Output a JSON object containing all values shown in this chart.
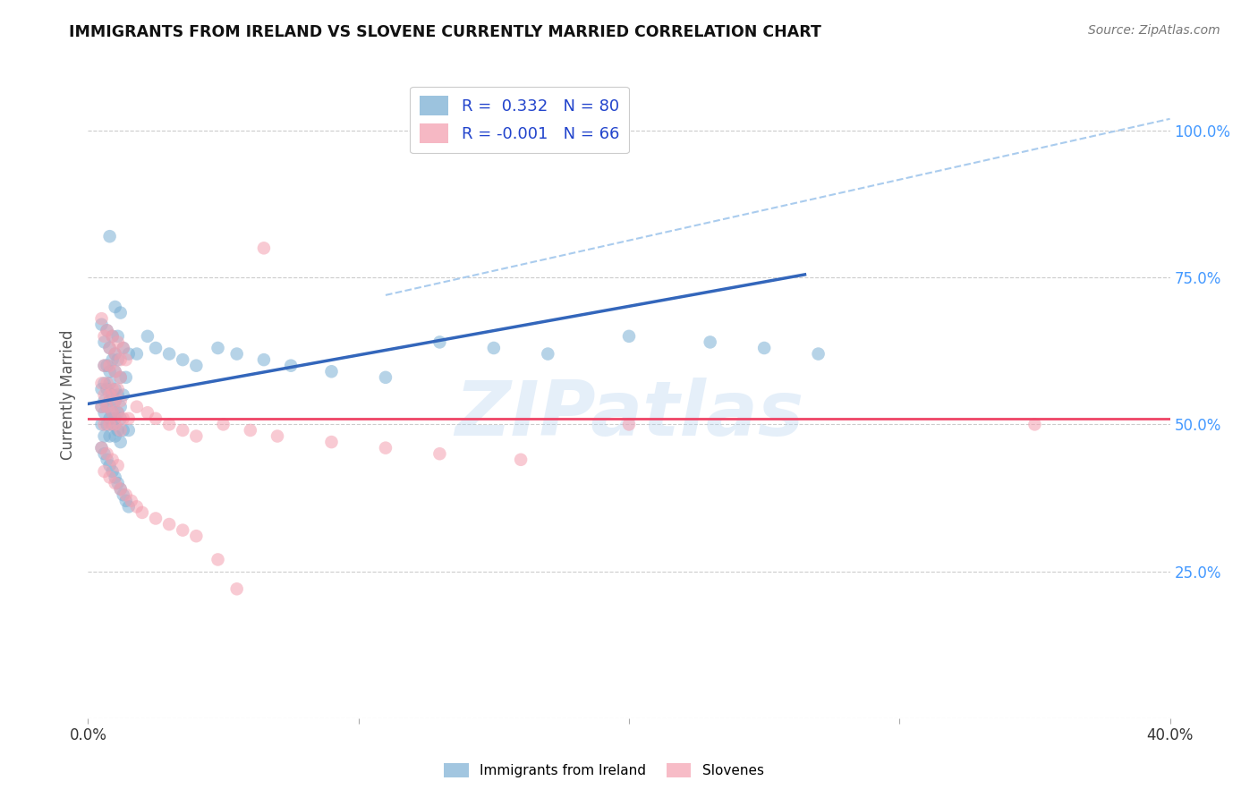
{
  "title": "IMMIGRANTS FROM IRELAND VS SLOVENE CURRENTLY MARRIED CORRELATION CHART",
  "source": "Source: ZipAtlas.com",
  "ylabel": "Currently Married",
  "xlim": [
    0.0,
    0.4
  ],
  "ylim": [
    0.0,
    1.1
  ],
  "y_ticks": [
    0.0,
    0.25,
    0.5,
    0.75,
    1.0
  ],
  "y_tick_labels": [
    "",
    "25.0%",
    "50.0%",
    "75.0%",
    "100.0%"
  ],
  "x_tick_positions": [
    0.0,
    0.1,
    0.2,
    0.3,
    0.4
  ],
  "x_tick_labels": [
    "0.0%",
    "",
    "",
    "",
    "40.0%"
  ],
  "legend1_label": "R =  0.332   N = 80",
  "legend2_label": "R = -0.001   N = 66",
  "blue_color": "#7BAFD4",
  "pink_color": "#F4A0B0",
  "blue_line_color": "#3366BB",
  "pink_line_color": "#EE4466",
  "dashed_line_color": "#AACCEE",
  "watermark": "ZIPatlas",
  "legend_entries": [
    {
      "label": "Immigrants from Ireland",
      "color": "#7BAFD4"
    },
    {
      "label": "Slovenes",
      "color": "#F4A0B0"
    }
  ],
  "blue_scatter_x": [
    0.008,
    0.01,
    0.012,
    0.005,
    0.007,
    0.009,
    0.011,
    0.006,
    0.008,
    0.01,
    0.013,
    0.015,
    0.009,
    0.011,
    0.007,
    0.006,
    0.008,
    0.01,
    0.012,
    0.014,
    0.006,
    0.008,
    0.01,
    0.005,
    0.007,
    0.009,
    0.011,
    0.013,
    0.006,
    0.008,
    0.01,
    0.012,
    0.005,
    0.007,
    0.009,
    0.011,
    0.006,
    0.008,
    0.01,
    0.012,
    0.005,
    0.007,
    0.009,
    0.011,
    0.013,
    0.015,
    0.006,
    0.008,
    0.01,
    0.012,
    0.018,
    0.022,
    0.025,
    0.03,
    0.035,
    0.04,
    0.048,
    0.055,
    0.065,
    0.075,
    0.09,
    0.11,
    0.13,
    0.15,
    0.17,
    0.2,
    0.23,
    0.25,
    0.27,
    0.005,
    0.006,
    0.007,
    0.008,
    0.009,
    0.01,
    0.011,
    0.012,
    0.013,
    0.014,
    0.015
  ],
  "blue_scatter_y": [
    0.82,
    0.7,
    0.69,
    0.67,
    0.66,
    0.65,
    0.65,
    0.64,
    0.63,
    0.62,
    0.63,
    0.62,
    0.61,
    0.61,
    0.6,
    0.6,
    0.59,
    0.59,
    0.58,
    0.58,
    0.57,
    0.57,
    0.56,
    0.56,
    0.56,
    0.55,
    0.55,
    0.55,
    0.54,
    0.54,
    0.54,
    0.53,
    0.53,
    0.53,
    0.52,
    0.52,
    0.52,
    0.51,
    0.51,
    0.51,
    0.5,
    0.5,
    0.5,
    0.49,
    0.49,
    0.49,
    0.48,
    0.48,
    0.48,
    0.47,
    0.62,
    0.65,
    0.63,
    0.62,
    0.61,
    0.6,
    0.63,
    0.62,
    0.61,
    0.6,
    0.59,
    0.58,
    0.64,
    0.63,
    0.62,
    0.65,
    0.64,
    0.63,
    0.62,
    0.46,
    0.45,
    0.44,
    0.43,
    0.42,
    0.41,
    0.4,
    0.39,
    0.38,
    0.37,
    0.36
  ],
  "pink_scatter_x": [
    0.005,
    0.007,
    0.009,
    0.011,
    0.013,
    0.006,
    0.008,
    0.01,
    0.012,
    0.014,
    0.006,
    0.008,
    0.01,
    0.012,
    0.005,
    0.007,
    0.009,
    0.011,
    0.006,
    0.008,
    0.01,
    0.012,
    0.005,
    0.007,
    0.009,
    0.011,
    0.013,
    0.015,
    0.006,
    0.008,
    0.01,
    0.012,
    0.018,
    0.022,
    0.025,
    0.03,
    0.035,
    0.04,
    0.05,
    0.06,
    0.07,
    0.09,
    0.11,
    0.13,
    0.16,
    0.2,
    0.005,
    0.007,
    0.009,
    0.011,
    0.006,
    0.008,
    0.01,
    0.012,
    0.014,
    0.016,
    0.018,
    0.02,
    0.025,
    0.03,
    0.035,
    0.04,
    0.048,
    0.055,
    0.065,
    0.35
  ],
  "pink_scatter_y": [
    0.68,
    0.66,
    0.65,
    0.64,
    0.63,
    0.65,
    0.63,
    0.62,
    0.61,
    0.61,
    0.6,
    0.6,
    0.59,
    0.58,
    0.57,
    0.57,
    0.56,
    0.56,
    0.55,
    0.55,
    0.54,
    0.54,
    0.53,
    0.53,
    0.52,
    0.52,
    0.51,
    0.51,
    0.5,
    0.5,
    0.5,
    0.49,
    0.53,
    0.52,
    0.51,
    0.5,
    0.49,
    0.48,
    0.5,
    0.49,
    0.48,
    0.47,
    0.46,
    0.45,
    0.44,
    0.5,
    0.46,
    0.45,
    0.44,
    0.43,
    0.42,
    0.41,
    0.4,
    0.39,
    0.38,
    0.37,
    0.36,
    0.35,
    0.34,
    0.33,
    0.32,
    0.31,
    0.27,
    0.22,
    0.8,
    0.5
  ],
  "blue_trend_x": [
    0.0,
    0.265
  ],
  "blue_trend_y": [
    0.535,
    0.755
  ],
  "pink_trend_x": [
    0.0,
    0.4
  ],
  "pink_trend_y": [
    0.51,
    0.51
  ],
  "dashed_line_x": [
    0.11,
    0.4
  ],
  "dashed_line_y": [
    0.72,
    1.02
  ]
}
